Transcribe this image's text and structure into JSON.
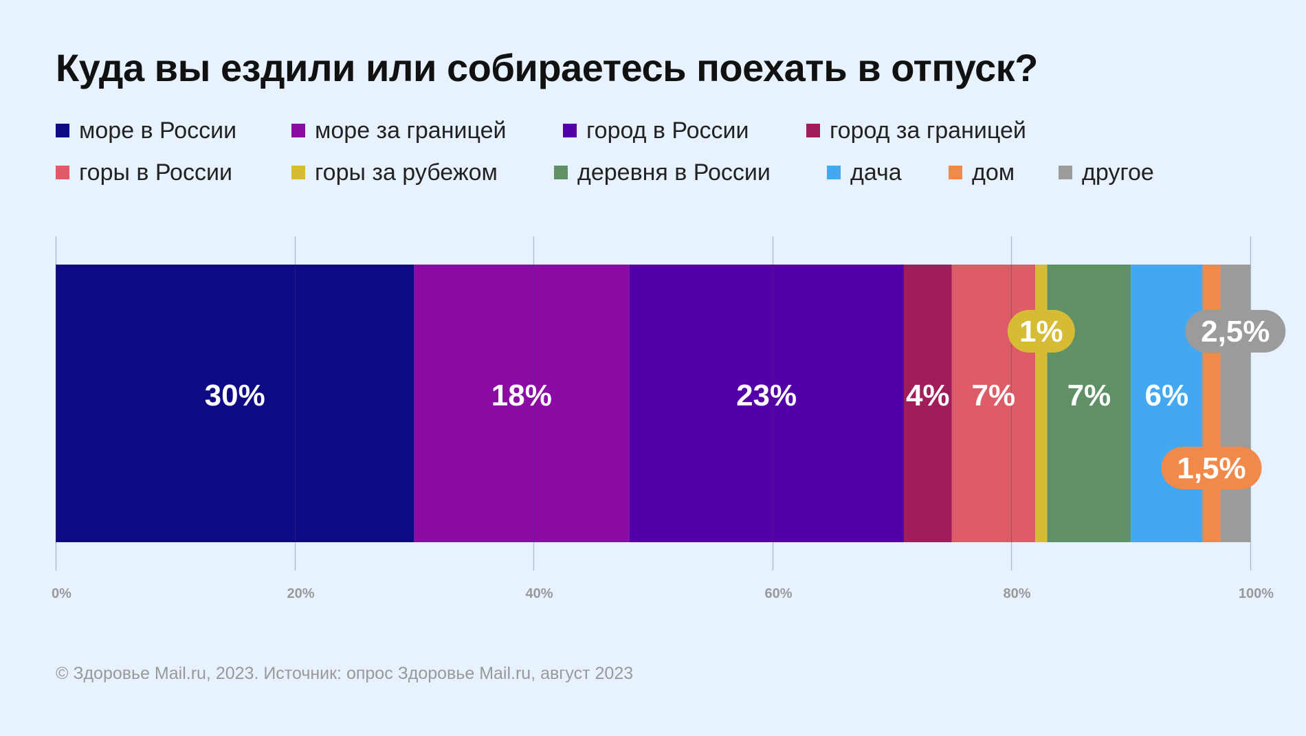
{
  "chart_data": {
    "type": "bar",
    "orientation": "horizontal-stacked",
    "title": "Куда вы ездили или собираетесь поехать в отпуск?",
    "series": [
      {
        "name": "море в России",
        "value": 30,
        "label": "30%",
        "color": "#0E0A84"
      },
      {
        "name": "море за границей",
        "value": 18,
        "label": "18%",
        "color": "#8A0CA5"
      },
      {
        "name": "город в России",
        "value": 23,
        "label": "23%",
        "color": "#5400A8"
      },
      {
        "name": "город за границей",
        "value": 4,
        "label": "4%",
        "color": "#A11D5A"
      },
      {
        "name": "горы в России",
        "value": 7,
        "label": "7%",
        "color": "#DE5C68"
      },
      {
        "name": "горы за рубежом",
        "value": 1,
        "label": "1%",
        "color": "#D6BB35",
        "callout": "top"
      },
      {
        "name": "деревня в России",
        "value": 7,
        "label": "7%",
        "color": "#609066"
      },
      {
        "name": "дача",
        "value": 6,
        "label": "6%",
        "color": "#42A8F2"
      },
      {
        "name": "дом",
        "value": 1.5,
        "label": "1,5%",
        "color": "#F0894A",
        "callout": "bottom"
      },
      {
        "name": "другое",
        "value": 2.5,
        "label": "2,5%",
        "color": "#9B9B9B",
        "callout": "top"
      }
    ],
    "xlim": [
      0,
      100
    ],
    "xticks": [
      "0%",
      "20%",
      "40%",
      "60%",
      "80%",
      "100%"
    ],
    "grid": true,
    "legend": "top"
  },
  "footer": "© Здоровье Mail.ru, 2023. Источник: опрос Здоровье Mail.ru, август 2023"
}
